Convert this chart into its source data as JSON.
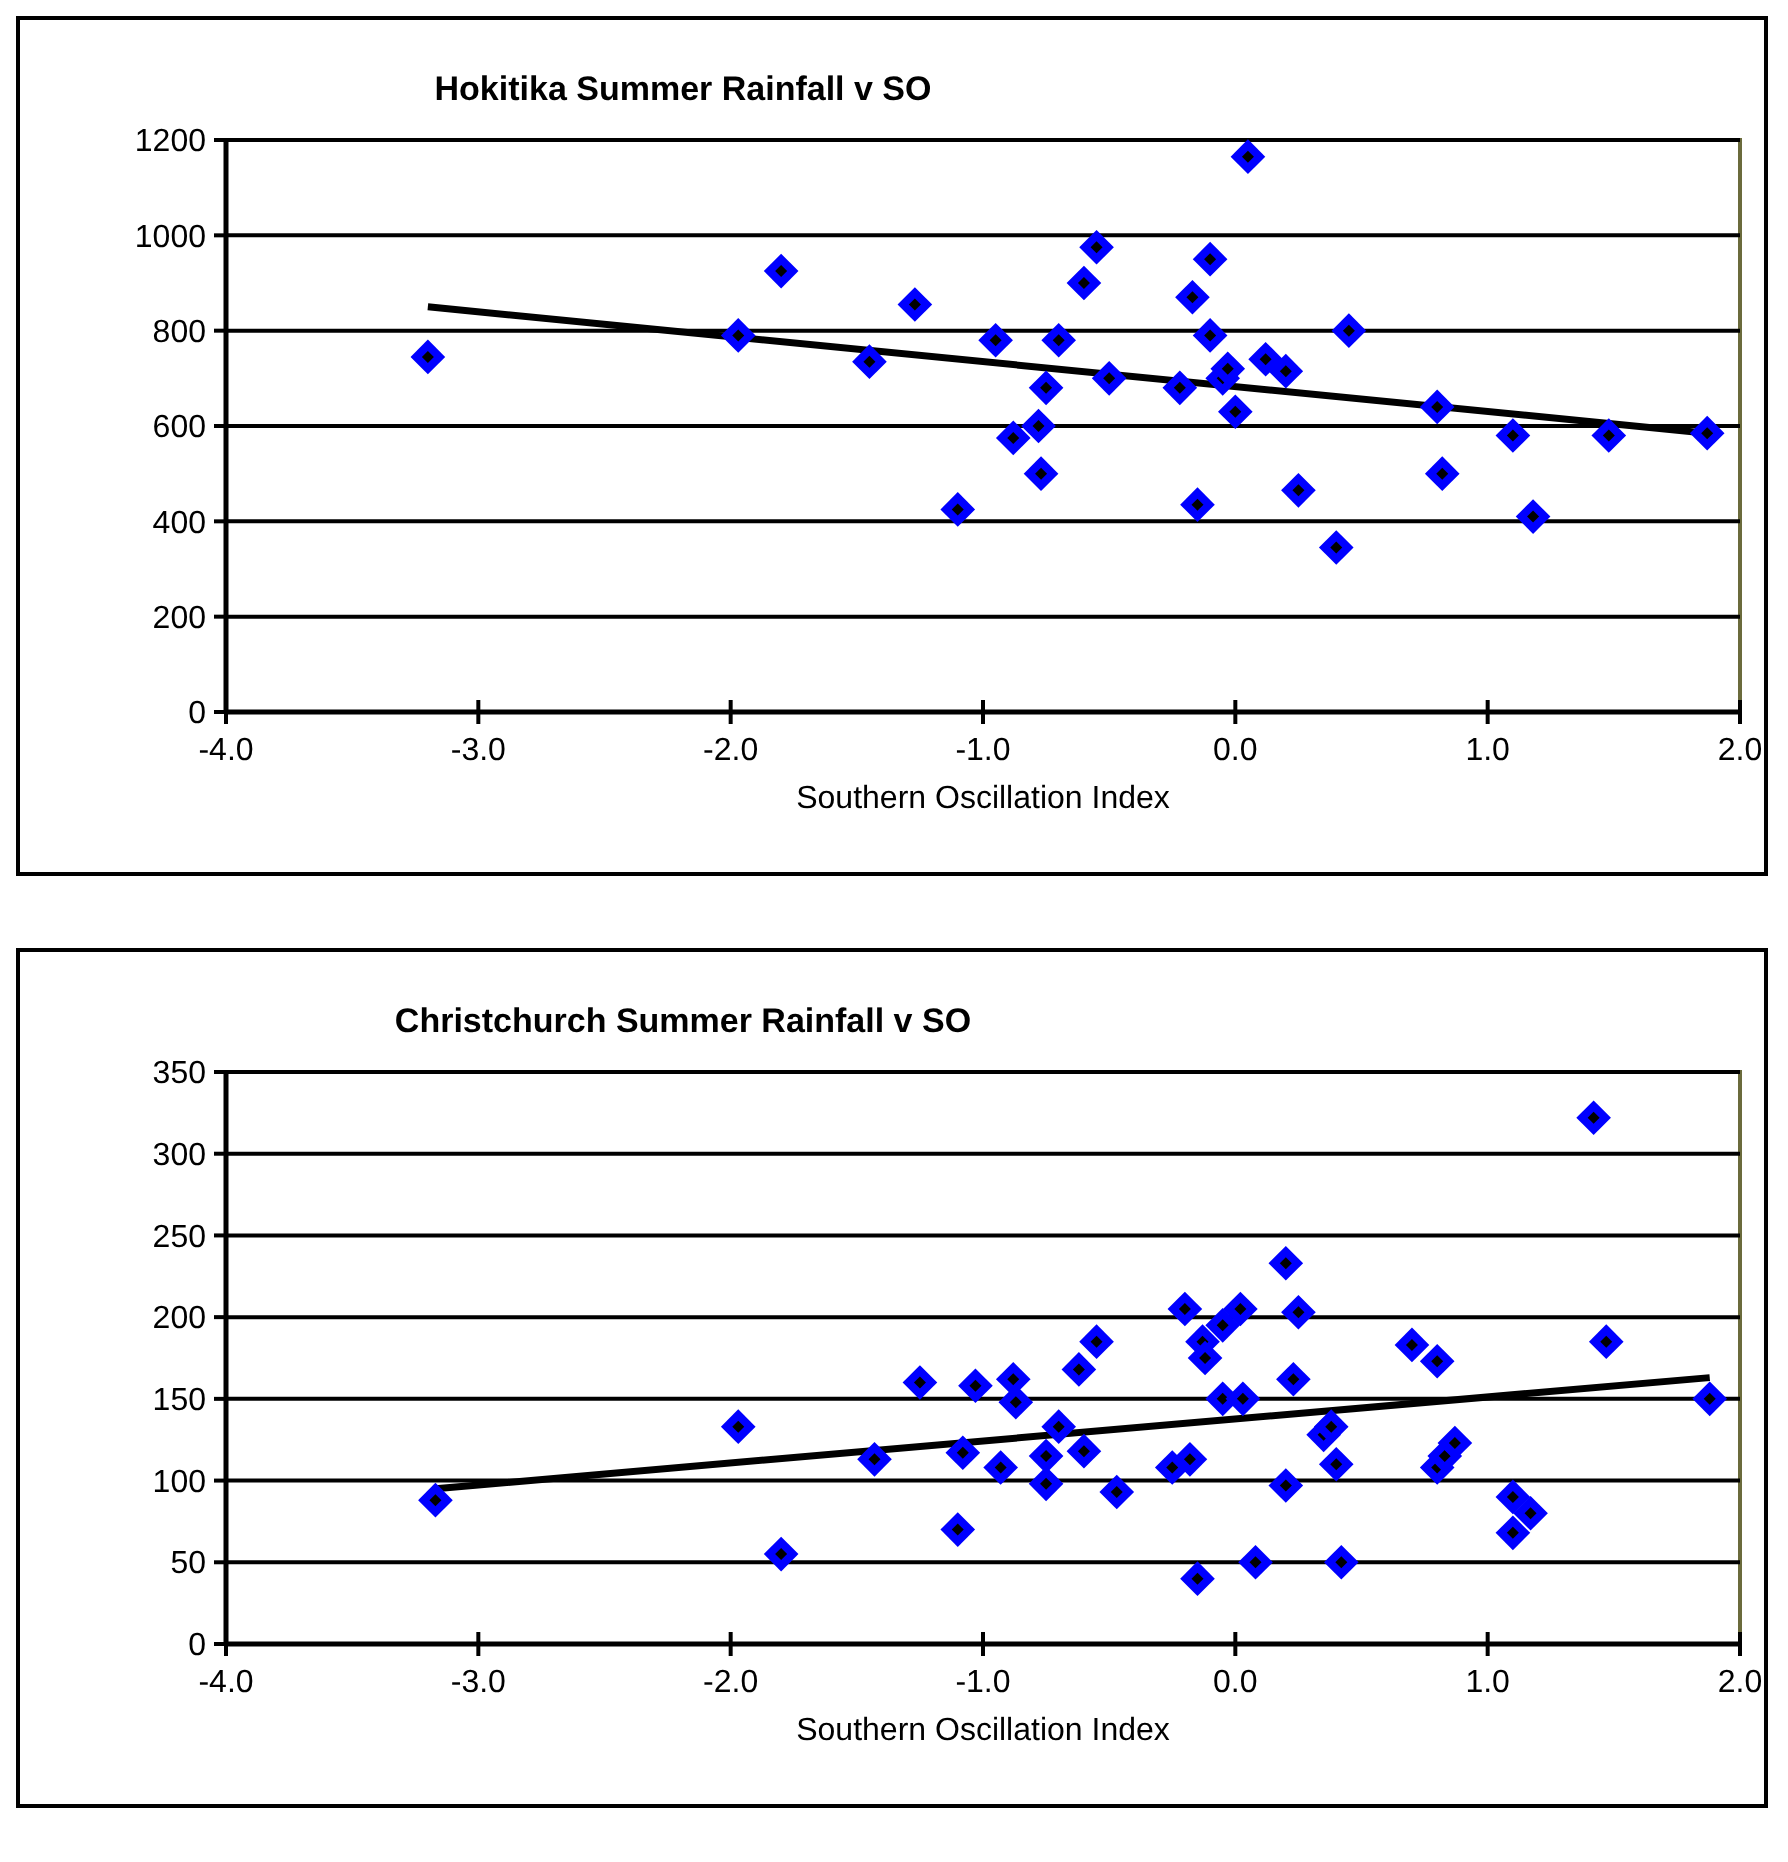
{
  "chart_data": [
    {
      "type": "scatter",
      "title": "Hokitika Summer Rainfall v SO",
      "xlabel": "Southern Oscillation Index",
      "xlim": [
        -4,
        2
      ],
      "xticks": [
        {
          "value": -4,
          "label": "-4.0"
        },
        {
          "value": -3,
          "label": "-3.0"
        },
        {
          "value": -2,
          "label": "-2.0"
        },
        {
          "value": -1,
          "label": "-1.0"
        },
        {
          "value": 0,
          "label": "0.0"
        },
        {
          "value": 1,
          "label": "1.0"
        },
        {
          "value": 2,
          "label": "2.0"
        }
      ],
      "ylim": [
        0,
        1200
      ],
      "yticks": [
        0,
        200,
        400,
        600,
        800,
        1000,
        1200
      ],
      "grid": "y",
      "series": [
        {
          "type": "scatter",
          "color": "#0000ff",
          "marker": "diamond",
          "x": [
            -3.2,
            -1.97,
            -1.8,
            -1.45,
            -1.27,
            -1.1,
            -0.95,
            -0.88,
            -0.78,
            -0.77,
            -0.75,
            -0.7,
            -0.6,
            -0.55,
            -0.5,
            -0.22,
            -0.17,
            -0.15,
            -0.1,
            -0.1,
            -0.05,
            -0.03,
            0,
            0.05,
            0.12,
            0.2,
            0.25,
            0.4,
            0.45,
            0.8,
            0.82,
            1.1,
            1.18,
            1.48,
            1.87
          ],
          "values": [
            745,
            790,
            925,
            735,
            855,
            425,
            780,
            575,
            600,
            500,
            680,
            780,
            900,
            975,
            700,
            680,
            870,
            435,
            950,
            790,
            700,
            720,
            630,
            1165,
            740,
            715,
            465,
            345,
            800,
            640,
            500,
            580,
            410,
            580,
            585
          ]
        },
        {
          "type": "line",
          "color": "#000000",
          "x": [
            -3.2,
            1.87
          ],
          "values": [
            850,
            585
          ]
        }
      ]
    },
    {
      "type": "scatter",
      "title": "Christchurch Summer Rainfall v SO",
      "xlabel": "Southern Oscillation Index",
      "xlim": [
        -4,
        2
      ],
      "xticks": [
        {
          "value": -4,
          "label": "-4.0"
        },
        {
          "value": -3,
          "label": "-3.0"
        },
        {
          "value": -2,
          "label": "-2.0"
        },
        {
          "value": -1,
          "label": "-1.0"
        },
        {
          "value": 0,
          "label": "0.0"
        },
        {
          "value": 1,
          "label": "1.0"
        },
        {
          "value": 2,
          "label": "2.0"
        }
      ],
      "ylim": [
        0,
        350
      ],
      "yticks": [
        0,
        50,
        100,
        150,
        200,
        250,
        300,
        350
      ],
      "grid": "y",
      "series": [
        {
          "type": "scatter",
          "color": "#0000ff",
          "marker": "diamond",
          "x": [
            -3.17,
            -1.97,
            -1.8,
            -1.43,
            -1.25,
            -1.1,
            -1.08,
            -1.03,
            -0.93,
            -0.88,
            -0.87,
            -0.75,
            -0.75,
            -0.7,
            -0.62,
            -0.6,
            -0.55,
            -0.47,
            -0.25,
            -0.2,
            -0.18,
            -0.15,
            -0.13,
            -0.12,
            -0.05,
            -0.05,
            0.02,
            0.03,
            0.08,
            0.2,
            0.2,
            0.23,
            0.25,
            0.35,
            0.38,
            0.4,
            0.42,
            0.7,
            0.8,
            0.8,
            0.83,
            0.87,
            1.1,
            1.1,
            1.17,
            1.42,
            1.47,
            1.88
          ],
          "values": [
            88,
            133,
            55,
            113,
            160,
            70,
            117,
            158,
            108,
            162,
            148,
            98,
            115,
            133,
            168,
            118,
            185,
            93,
            108,
            205,
            113,
            40,
            185,
            175,
            195,
            150,
            205,
            150,
            50,
            233,
            97,
            162,
            203,
            128,
            133,
            110,
            50,
            183,
            108,
            173,
            115,
            123,
            90,
            68,
            80,
            322,
            185,
            150
          ]
        },
        {
          "type": "line",
          "color": "#000000",
          "x": [
            -3.17,
            1.88
          ],
          "values": [
            95,
            163
          ]
        }
      ]
    }
  ]
}
